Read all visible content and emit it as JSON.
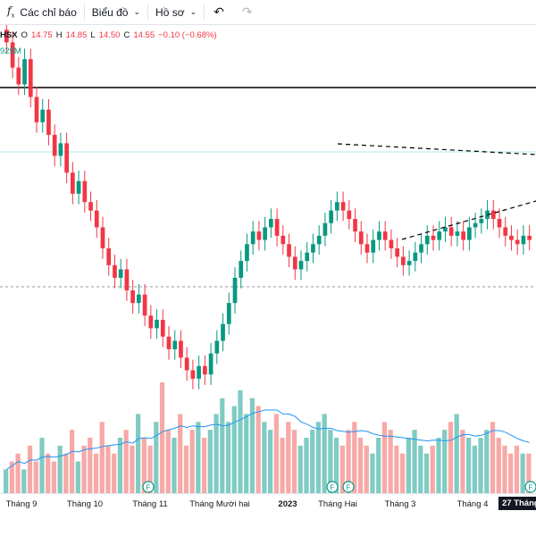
{
  "toolbar": {
    "indicators_label": "Các chỉ báo",
    "chart_label": "Biểu đồ",
    "profile_label": "Hồ sơ"
  },
  "legend": {
    "symbol": "HSX",
    "open_key": "O",
    "open": "14.75",
    "high_key": "H",
    "high": "14.85",
    "low_key": "L",
    "low": "14.50",
    "close_key": "C",
    "close": "14.55",
    "change": "−0.10 (−0.68%)",
    "volume_fragment": "925M"
  },
  "colors": {
    "up": "#089981",
    "down": "#f23645",
    "volume_up": "#80cbc4",
    "volume_down": "#f7a9a7",
    "ma": "#2196f3"
  },
  "chart_data": {
    "type": "candlestick",
    "price_values": [
      17.8,
      17.2,
      16.8,
      17.4,
      16.5,
      15.9,
      16.2,
      15.6,
      15.1,
      15.4,
      14.7,
      14.2,
      14.5,
      14.0,
      13.8,
      13.4,
      12.9,
      12.5,
      12.2,
      12.4,
      11.9,
      11.6,
      11.8,
      11.3,
      11.0,
      11.2,
      10.8,
      10.5,
      10.7,
      10.3,
      10.0,
      9.8,
      10.1,
      9.9,
      10.4,
      10.7,
      11.1,
      11.6,
      12.2,
      12.6,
      13.0,
      13.3,
      13.1,
      13.4,
      13.6,
      13.2,
      13.0,
      12.7,
      12.4,
      12.6,
      12.8,
      13.0,
      13.2,
      13.5,
      13.8,
      14.0,
      13.8,
      13.6,
      13.3,
      13.0,
      12.8,
      13.1,
      13.3,
      13.1,
      12.9,
      12.7,
      12.5,
      12.6,
      12.8,
      13.0,
      13.2,
      13.1,
      13.3,
      13.4,
      13.2,
      13.3,
      13.1,
      13.4,
      13.5,
      13.6,
      13.8,
      13.6,
      13.4,
      13.2,
      13.1,
      13.0,
      13.2,
      13.1
    ],
    "volume_values": [
      3,
      4,
      5,
      3,
      6,
      4,
      7,
      5,
      4,
      6,
      5,
      8,
      4,
      6,
      7,
      5,
      9,
      6,
      5,
      7,
      8,
      6,
      10,
      7,
      6,
      9,
      14,
      8,
      7,
      10,
      6,
      8,
      9,
      7,
      8,
      10,
      12,
      9,
      11,
      13,
      10,
      12,
      11,
      9,
      8,
      10,
      7,
      9,
      8,
      6,
      7,
      8,
      9,
      10,
      8,
      7,
      6,
      8,
      9,
      7,
      6,
      5,
      7,
      9,
      8,
      6,
      5,
      7,
      8,
      6,
      5,
      6,
      7,
      8,
      9,
      10,
      8,
      7,
      6,
      7,
      8,
      9,
      7,
      6,
      5,
      6,
      5,
      5
    ],
    "annotations": {
      "horizontal_line": "solid black resistance line",
      "triangle": "dashed converging lines (symmetric triangle)",
      "dividend_markers": [
        "F",
        "F",
        "F",
        "F"
      ]
    },
    "x_ticks": [
      "Tháng 9",
      "Tháng 10",
      "Tháng 11",
      "Tháng Mười hai",
      "2023",
      "Tháng Hai",
      "Tháng 3",
      "Tháng 4",
      "27 Tháng"
    ]
  }
}
